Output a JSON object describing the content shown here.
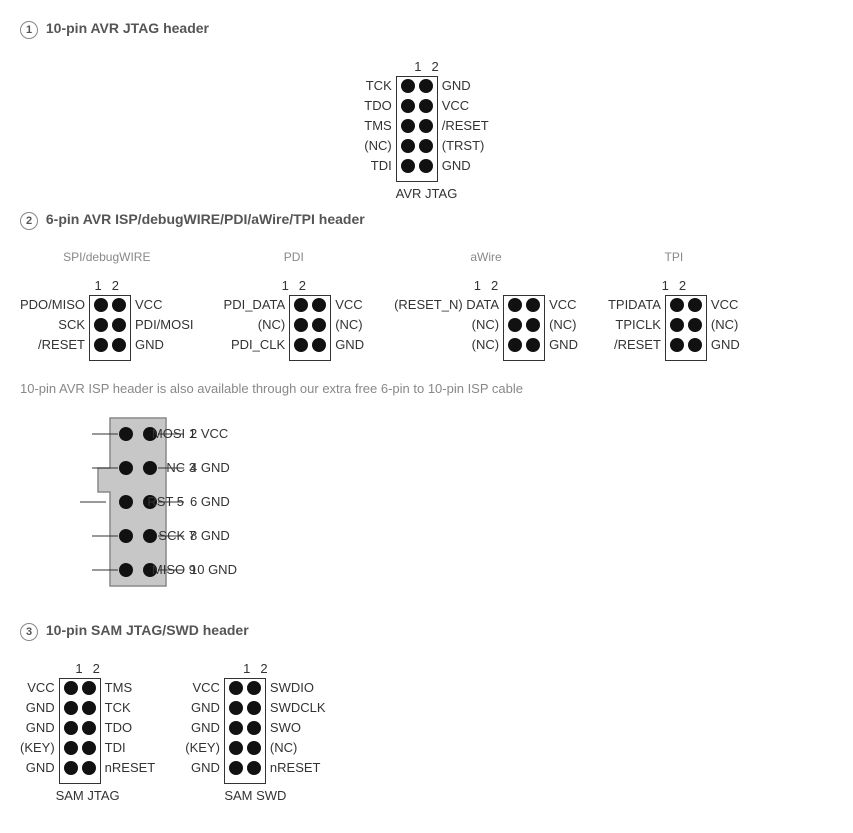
{
  "section1": {
    "title": "10-pin AVR JTAG header",
    "numbers": [
      "1",
      "2"
    ],
    "footer": "AVR JTAG",
    "left": [
      "TCK",
      "TDO",
      "TMS",
      "(NC)",
      "TDI"
    ],
    "right": [
      "GND",
      "VCC",
      "/RESET",
      "(TRST)",
      "GND"
    ]
  },
  "section2": {
    "title": "6-pin AVR ISP/debugWIRE/PDI/aWire/TPI header",
    "diagrams": [
      {
        "subtitle": "SPI/debugWIRE",
        "numbers": [
          "1",
          "2"
        ],
        "left": [
          "PDO/MISO",
          "SCK",
          "/RESET"
        ],
        "right": [
          "VCC",
          "PDI/MOSI",
          "GND"
        ]
      },
      {
        "subtitle": "PDI",
        "numbers": [
          "1",
          "2"
        ],
        "left": [
          "PDI_DATA",
          "(NC)",
          "PDI_CLK"
        ],
        "right": [
          "VCC",
          "(NC)",
          "GND"
        ]
      },
      {
        "subtitle": "aWire",
        "numbers": [
          "1",
          "2"
        ],
        "left": [
          "(RESET_N) DATA",
          "(NC)",
          "(NC)"
        ],
        "right": [
          "VCC",
          "(NC)",
          "GND"
        ]
      },
      {
        "subtitle": "TPI",
        "numbers": [
          "1",
          "2"
        ],
        "left": [
          "TPIDATA",
          "TPICLK",
          "/RESET"
        ],
        "right": [
          "VCC",
          "(NC)",
          "GND"
        ]
      }
    ],
    "note": "10-pin AVR ISP header is also available through our extra free 6-pin to 10-pin ISP cable"
  },
  "isp10": {
    "left": [
      {
        "n": "1",
        "l": "MOSI"
      },
      {
        "n": "3",
        "l": "NC"
      },
      {
        "n": "5",
        "l": "RST"
      },
      {
        "n": "7",
        "l": "SCK"
      },
      {
        "n": "9",
        "l": "MISO"
      }
    ],
    "right": [
      {
        "n": "2",
        "l": "VCC"
      },
      {
        "n": "4",
        "l": "GND"
      },
      {
        "n": "6",
        "l": "GND"
      },
      {
        "n": "8",
        "l": "GND"
      },
      {
        "n": "10",
        "l": "GND"
      }
    ],
    "shape_color": "#c7c7c7",
    "stroke": "#888",
    "dot_color": "#111"
  },
  "section3": {
    "title": "10-pin SAM JTAG/SWD header",
    "diagrams": [
      {
        "footer": "SAM JTAG",
        "numbers": [
          "1",
          "2"
        ],
        "left": [
          "VCC",
          "GND",
          "GND",
          "(KEY)",
          "GND"
        ],
        "right": [
          "TMS",
          "TCK",
          "TDO",
          "TDI",
          "nRESET"
        ]
      },
      {
        "footer": "SAM SWD",
        "numbers": [
          "1",
          "2"
        ],
        "left": [
          "VCC",
          "GND",
          "GND",
          "(KEY)",
          "GND"
        ],
        "right": [
          "SWDIO",
          "SWDCLK",
          "SWO",
          "(NC)",
          "nRESET"
        ]
      }
    ]
  }
}
